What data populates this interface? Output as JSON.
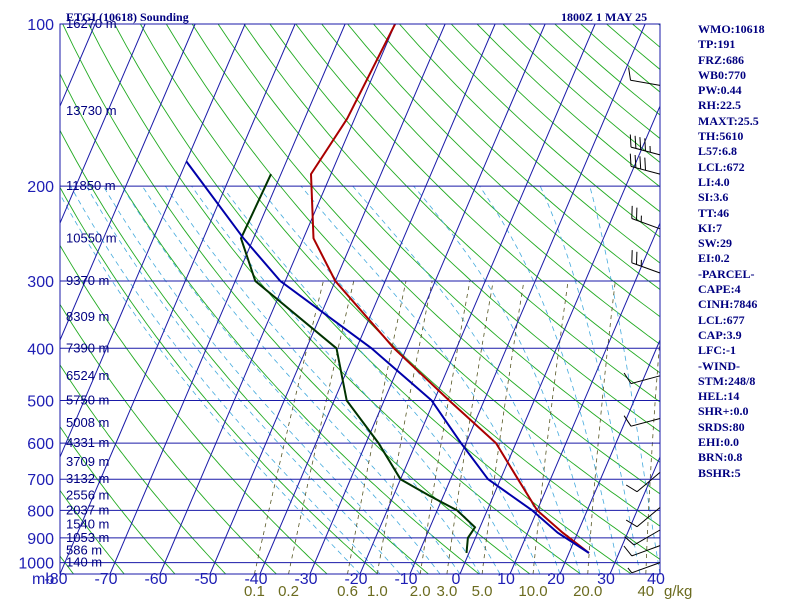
{
  "header": {
    "station_title": "ETGI (10618) Sounding",
    "valid_time": "1800Z  1 MAY 25"
  },
  "indices": [
    "WMO:10618",
    "TP:191",
    "FRZ:686",
    "WB0:770",
    "PW:0.44",
    "RH:22.5",
    "MAXT:25.5",
    "TH:5610",
    "L57:6.8",
    "LCL:672",
    "LI:4.0",
    "SI:3.6",
    "TT:46",
    "KI:7",
    "SW:29",
    "EI:0.2",
    "-PARCEL-",
    "CAPE:4",
    "CINH:7846",
    "LCL:677",
    "CAP:3.9",
    "LFC:-1",
    "-WIND-",
    "STM:248/8",
    "HEL:14",
    "SHR+:0.0",
    "SRDS:80",
    "EHI:0.0",
    "BRN:0.8",
    "BSHR:5"
  ],
  "chart_data": {
    "type": "line",
    "title": "ETGI (10618) Sounding",
    "xlabel": "",
    "ylabel": "mb",
    "xlim": [
      -80,
      40
    ],
    "pressure_levels": [
      100,
      200,
      300,
      400,
      500,
      600,
      700,
      800,
      900,
      1000
    ],
    "pressure_tick_labels": [
      "100",
      "200",
      "300",
      "400",
      "500",
      "600",
      "700",
      "800",
      "900",
      "1000"
    ],
    "y_axis_unit_label": "mb",
    "temperature_ticks": [
      -80,
      -70,
      -60,
      -50,
      -40,
      -30,
      -20,
      -10,
      0,
      10,
      20,
      30,
      40
    ],
    "temperature_tick_labels": [
      "-80",
      "-70",
      "-60",
      "-50",
      "-40",
      "-30",
      "-20",
      "-10",
      "0",
      "10",
      "20",
      "30",
      "40"
    ],
    "mixing_ratio_ticks": [
      {
        "label": "0.1",
        "value": 0.1
      },
      {
        "label": "0.2",
        "value": 0.2
      },
      {
        "label": "0.6",
        "value": 0.6
      },
      {
        "label": "1.0",
        "value": 1.0
      },
      {
        "label": "2.0",
        "value": 2.0
      },
      {
        "label": "3.0",
        "value": 3.0
      },
      {
        "label": "5.0",
        "value": 5.0
      },
      {
        "label": "10.0",
        "value": 10.0
      },
      {
        "label": "20.0",
        "value": 20.0
      },
      {
        "label": "40",
        "value": 40.0
      }
    ],
    "mixing_ratio_unit": "g/kg",
    "height_labels": [
      {
        "p": 100,
        "label": "16270 m"
      },
      {
        "p": 145,
        "label": "13730 m"
      },
      {
        "p": 200,
        "label": "11850 m"
      },
      {
        "p": 250,
        "label": "10550 m"
      },
      {
        "p": 300,
        "label": "9370 m"
      },
      {
        "p": 350,
        "label": "8309 m"
      },
      {
        "p": 400,
        "label": "7390 m"
      },
      {
        "p": 450,
        "label": "6524 m"
      },
      {
        "p": 500,
        "label": "5750 m"
      },
      {
        "p": 550,
        "label": "5008 m"
      },
      {
        "p": 600,
        "label": "4331 m"
      },
      {
        "p": 650,
        "label": "3709 m"
      },
      {
        "p": 700,
        "label": "3132 m"
      },
      {
        "p": 750,
        "label": "2556 m"
      },
      {
        "p": 800,
        "label": "2037 m"
      },
      {
        "p": 850,
        "label": "1540 m"
      },
      {
        "p": 900,
        "label": "1053 m"
      },
      {
        "p": 950,
        "label": "586 m"
      },
      {
        "p": 1000,
        "label": "140 m"
      }
    ],
    "series": [
      {
        "key": "temperature",
        "color": "#aa0000",
        "points": [
          [
            100,
            -60.0
          ],
          [
            150,
            -61.5
          ],
          [
            190,
            -64.0
          ],
          [
            250,
            -58.0
          ],
          [
            300,
            -50.0
          ],
          [
            400,
            -32.5
          ],
          [
            500,
            -17.0
          ],
          [
            600,
            -4.0
          ],
          [
            700,
            3.5
          ],
          [
            800,
            10.0
          ],
          [
            880,
            17.0
          ],
          [
            960,
            24.0
          ]
        ]
      },
      {
        "key": "dewpoint",
        "color": "#003300",
        "points": [
          [
            190,
            -72.0
          ],
          [
            250,
            -72.5
          ],
          [
            300,
            -66.0
          ],
          [
            400,
            -44.0
          ],
          [
            500,
            -37.5
          ],
          [
            600,
            -27.5
          ],
          [
            700,
            -20.0
          ],
          [
            750,
            -13.0
          ],
          [
            800,
            -6.0
          ],
          [
            860,
            -1.0
          ],
          [
            900,
            -1.5
          ],
          [
            960,
            -0.5
          ]
        ]
      },
      {
        "key": "parcel",
        "color": "#0000aa",
        "points": [
          [
            180,
            -90.0
          ],
          [
            250,
            -72.0
          ],
          [
            300,
            -61.0
          ],
          [
            400,
            -37.0
          ],
          [
            500,
            -20.5
          ],
          [
            600,
            -11.0
          ],
          [
            700,
            -2.5
          ],
          [
            800,
            9.0
          ],
          [
            880,
            16.0
          ],
          [
            960,
            24.0
          ]
        ]
      }
    ],
    "wind_barbs": [
      {
        "p": 130,
        "dir": 280,
        "kt": 10
      },
      {
        "p": 175,
        "dir": 285,
        "kt": 45
      },
      {
        "p": 190,
        "dir": 285,
        "kt": 40
      },
      {
        "p": 240,
        "dir": 290,
        "kt": 25
      },
      {
        "p": 290,
        "dir": 290,
        "kt": 25
      },
      {
        "p": 450,
        "dir": 255,
        "kt": 10
      },
      {
        "p": 540,
        "dir": 255,
        "kt": 10
      },
      {
        "p": 680,
        "dir": 230,
        "kt": 10
      },
      {
        "p": 790,
        "dir": 230,
        "kt": 10
      },
      {
        "p": 870,
        "dir": 240,
        "kt": 10
      },
      {
        "p": 930,
        "dir": 250,
        "kt": 10
      },
      {
        "p": 1000,
        "dir": 250,
        "kt": 5
      }
    ],
    "grid": true,
    "legend": "none"
  }
}
